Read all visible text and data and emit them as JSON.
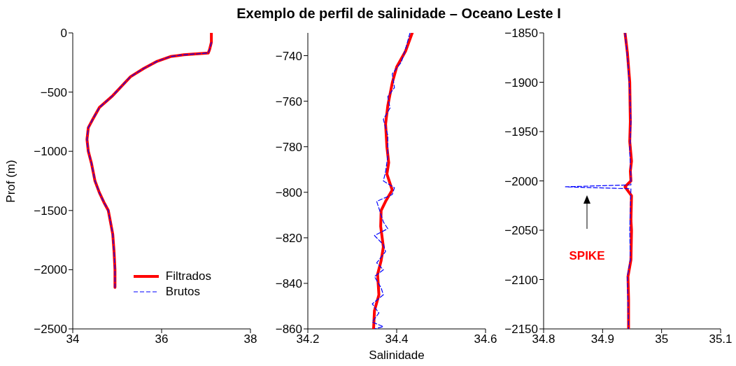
{
  "chart_data": [
    {
      "type": "line",
      "ylabel": "Prof (m)",
      "legend": "bottom right",
      "marker": "none",
      "xlim": [
        34,
        38
      ],
      "xticks": [
        34,
        36,
        38
      ],
      "ylim": [
        -2500,
        0
      ],
      "yticks": [
        0,
        {
          "value": -500,
          "label": "−500"
        },
        {
          "value": -1000,
          "label": "−1000"
        },
        {
          "value": -1500,
          "label": "−1500"
        },
        {
          "value": -2000,
          "label": "−2000"
        },
        {
          "value": -2500,
          "label": "−2500"
        }
      ],
      "series": [
        {
          "name": "Filtrados",
          "color": "#ff0000",
          "line_style": "solid",
          "x": [
            37.12,
            37.12,
            37.08,
            37.05,
            36.5,
            36.2,
            35.9,
            35.6,
            35.3,
            35.1,
            34.9,
            34.6,
            34.45,
            34.35,
            34.32,
            34.35,
            34.42,
            34.5,
            34.6,
            34.7,
            34.8,
            34.85,
            34.9,
            34.93,
            34.95,
            34.95
          ],
          "values": [
            0,
            -80,
            -140,
            -170,
            -185,
            -200,
            -240,
            -300,
            -370,
            -450,
            -530,
            -630,
            -730,
            -800,
            -900,
            -1000,
            -1100,
            -1250,
            -1350,
            -1430,
            -1500,
            -1600,
            -1700,
            -1850,
            -2000,
            -2150
          ]
        },
        {
          "name": "Brutos",
          "color": "#0000ff",
          "line_style": "dashed",
          "x": [
            37.12,
            37.08,
            37.05,
            36.5,
            36.2,
            35.9,
            35.6,
            35.3,
            35.1,
            34.9,
            34.6,
            34.45,
            34.35,
            34.32,
            34.35,
            34.42,
            34.5,
            34.6,
            34.7,
            34.8,
            34.85,
            34.9,
            34.93,
            34.95,
            34.95
          ],
          "values": [
            -80,
            -140,
            -170,
            -185,
            -200,
            -240,
            -300,
            -370,
            -450,
            -530,
            -630,
            -730,
            -800,
            -900,
            -1000,
            -1100,
            -1250,
            -1350,
            -1430,
            -1500,
            -1600,
            -1700,
            -1850,
            -2000,
            -2150
          ]
        }
      ]
    },
    {
      "type": "line",
      "title": "Exemplo de perfil de salinidade – Oceano Leste I",
      "xlabel": "Salinidade",
      "marker": "none",
      "xlim": [
        34.2,
        34.6
      ],
      "xticks": [
        34.2,
        34.4,
        34.6
      ],
      "ylim": [
        -860,
        -730
      ],
      "yticks": [
        {
          "value": -740,
          "label": "−740"
        },
        {
          "value": -760,
          "label": "−760"
        },
        {
          "value": -780,
          "label": "−780"
        },
        {
          "value": -800,
          "label": "−800"
        },
        {
          "value": -820,
          "label": "−820"
        },
        {
          "value": -840,
          "label": "−840"
        },
        {
          "value": -860,
          "label": "−860"
        }
      ],
      "series": [
        {
          "color": "#ff0000",
          "line_style": "solid",
          "x": [
            34.435,
            34.42,
            34.4,
            34.39,
            34.38,
            34.375,
            34.378,
            34.382,
            34.378,
            34.39,
            34.375,
            34.365,
            34.364,
            34.37,
            34.365,
            34.357,
            34.36,
            34.35,
            34.348
          ],
          "values": [
            -730,
            -738,
            -745,
            -752,
            -762,
            -770,
            -780,
            -787,
            -792,
            -799,
            -804,
            -808,
            -815,
            -824,
            -830,
            -836,
            -845,
            -852,
            -860
          ]
        },
        {
          "color": "#0000ff",
          "line_style": "dashed",
          "x": [
            34.43,
            34.42,
            34.41,
            34.39,
            34.395,
            34.38,
            34.385,
            34.37,
            34.38,
            34.38,
            34.375,
            34.37,
            34.395,
            34.39,
            34.355,
            34.36,
            34.37,
            34.38,
            34.35,
            34.37,
            34.375,
            34.355,
            34.37,
            34.35,
            34.365,
            34.37,
            34.345,
            34.36,
            34.345,
            34.37,
            34.35
          ],
          "values": [
            -730,
            -737,
            -743,
            -748,
            -754,
            -758,
            -763,
            -768,
            -775,
            -784,
            -791,
            -795,
            -798,
            -801,
            -804,
            -807,
            -813,
            -816,
            -819,
            -823,
            -826,
            -831,
            -834,
            -837,
            -842,
            -845,
            -849,
            -853,
            -857,
            -859,
            -860
          ]
        }
      ]
    },
    {
      "type": "line",
      "marker": "none",
      "xlim": [
        34.8,
        35.1
      ],
      "xticks": [
        34.8,
        34.9,
        35,
        35.1
      ],
      "ylim": [
        -2150,
        -1850
      ],
      "yticks": [
        {
          "value": -1850,
          "label": "−1850"
        },
        {
          "value": -1900,
          "label": "−1900"
        },
        {
          "value": -1950,
          "label": "−1950"
        },
        {
          "value": -2000,
          "label": "−2000"
        },
        {
          "value": -2050,
          "label": "−2050"
        },
        {
          "value": -2100,
          "label": "−2100"
        },
        {
          "value": -2150,
          "label": "−2150"
        }
      ],
      "annotations": [
        "SPIKE"
      ],
      "series": [
        {
          "color": "#ff0000",
          "line_style": "solid",
          "x": [
            34.938,
            34.942,
            34.946,
            34.947,
            34.946,
            34.949,
            34.947,
            34.948,
            34.938,
            34.949,
            34.948,
            34.949,
            34.948,
            34.943,
            34.944,
            34.944
          ],
          "values": [
            -1850,
            -1870,
            -1900,
            -1940,
            -1960,
            -1980,
            -1990,
            -2000,
            -2006,
            -2015,
            -2040,
            -2050,
            -2080,
            -2097,
            -2120,
            -2150
          ]
        },
        {
          "color": "#0000ff",
          "line_style": "dashed",
          "x": [
            34.938,
            34.943,
            34.946,
            34.948,
            34.946,
            34.948,
            34.948,
            34.837,
            34.948,
            34.947,
            34.946,
            34.947,
            34.942,
            34.944
          ],
          "values": [
            -1850,
            -1880,
            -1910,
            -1940,
            -1970,
            -1995,
            -2004,
            -2006,
            -2008,
            -2030,
            -2050,
            -2080,
            -2097,
            -2150
          ]
        }
      ]
    }
  ]
}
